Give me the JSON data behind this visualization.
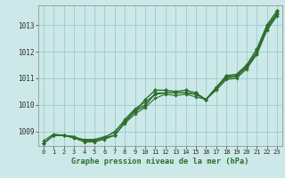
{
  "background_color": "#cce8e8",
  "grid_color": "#99cccc",
  "line_color": "#2d6e2d",
  "xlabel": "Graphe pression niveau de la mer (hPa)",
  "x_ticks": [
    0,
    1,
    2,
    3,
    4,
    5,
    6,
    7,
    8,
    9,
    10,
    11,
    12,
    13,
    14,
    15,
    16,
    17,
    18,
    19,
    20,
    21,
    22,
    23
  ],
  "y_ticks": [
    1009,
    1010,
    1011,
    1012,
    1013
  ],
  "ylim": [
    1008.45,
    1013.75
  ],
  "xlim": [
    -0.5,
    23.5
  ],
  "series": [
    [
      1008.55,
      1008.85,
      1008.85,
      1008.8,
      1008.65,
      1008.65,
      1008.75,
      1008.85,
      1009.35,
      1009.75,
      1009.95,
      1010.45,
      1010.45,
      1010.45,
      1010.45,
      1010.4,
      1010.2,
      1010.65,
      1011.05,
      1011.1,
      1011.45,
      1011.95,
      1012.9,
      1013.45
    ],
    [
      1008.55,
      1008.85,
      1008.85,
      1008.8,
      1008.65,
      1008.65,
      1008.75,
      1009.0,
      1009.4,
      1009.8,
      1010.0,
      1010.4,
      1010.45,
      1010.45,
      1010.45,
      1010.4,
      1010.2,
      1010.6,
      1011.0,
      1011.05,
      1011.4,
      1011.9,
      1012.85,
      1013.4
    ],
    [
      1008.65,
      1008.9,
      1008.85,
      1008.75,
      1008.7,
      1008.7,
      1008.8,
      1008.95,
      1009.45,
      1009.85,
      1010.1,
      1010.4,
      1010.45,
      1010.45,
      1010.45,
      1010.4,
      1010.2,
      1010.65,
      1011.05,
      1011.1,
      1011.45,
      1012.0,
      1012.95,
      1013.45
    ],
    [
      1008.55,
      1008.85,
      1008.85,
      1008.75,
      1008.6,
      1008.6,
      1008.7,
      1008.85,
      1009.3,
      1009.65,
      1009.9,
      1010.25,
      1010.4,
      1010.35,
      1010.4,
      1010.3,
      1010.2,
      1010.55,
      1010.95,
      1011.0,
      1011.35,
      1011.9,
      1012.8,
      1013.35
    ]
  ],
  "series_top": [
    1008.55,
    1008.85,
    1008.85,
    1008.8,
    1008.65,
    1008.65,
    1008.75,
    1008.85,
    1009.35,
    1009.75,
    1010.2,
    1010.55,
    1010.55,
    1010.5,
    1010.55,
    1010.45,
    1010.2,
    1010.65,
    1011.1,
    1011.15,
    1011.5,
    1012.1,
    1013.0,
    1013.55
  ]
}
